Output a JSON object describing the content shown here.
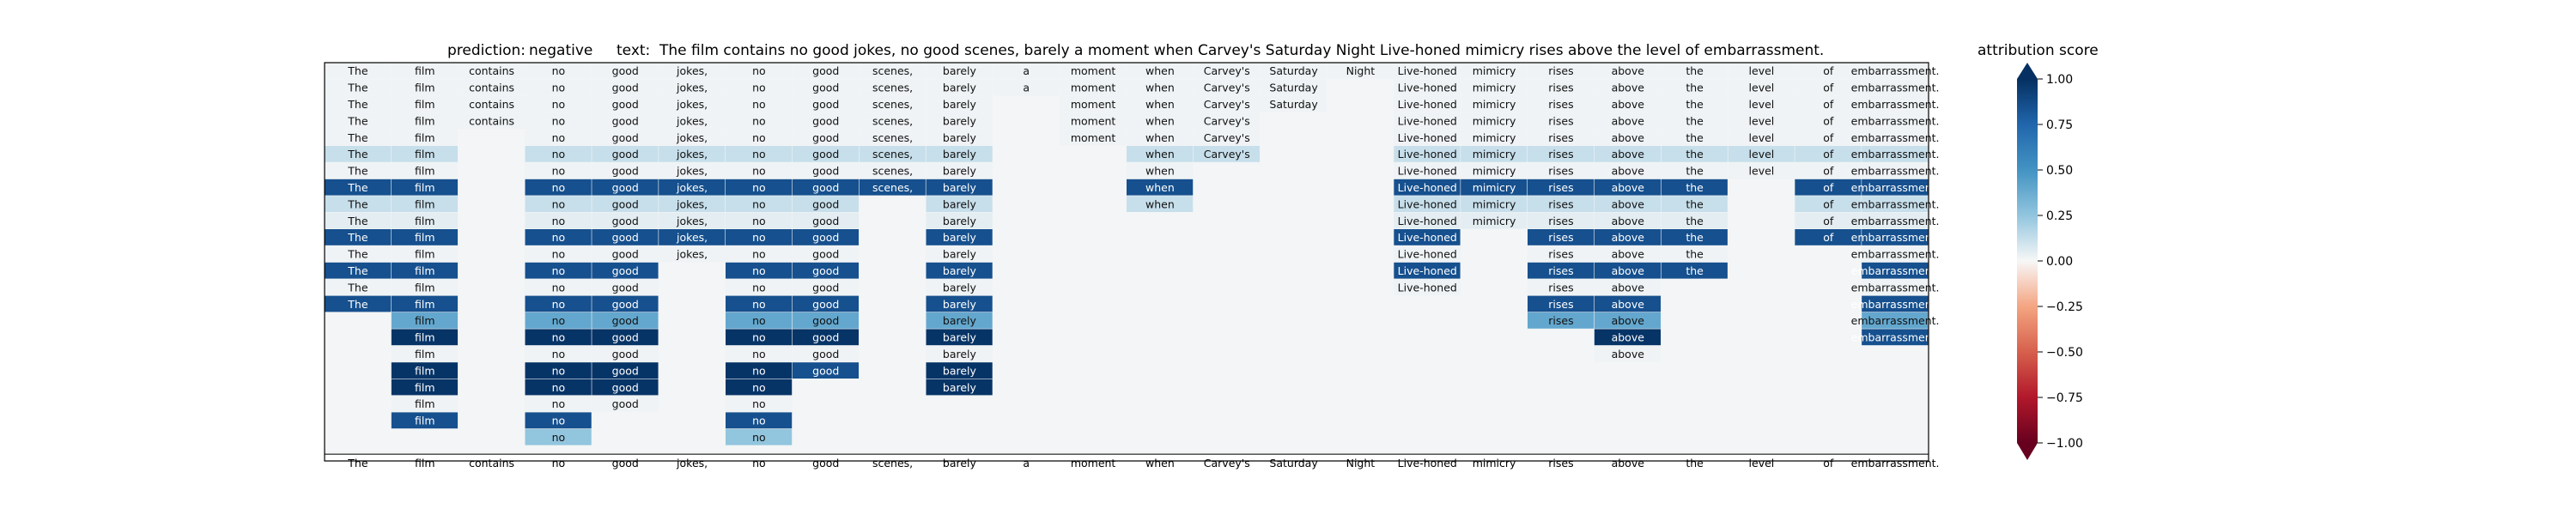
{
  "chart_data": {
    "type": "heatmap",
    "title_prediction_label": "prediction:",
    "prediction": "negative",
    "title_text_label": "text:",
    "text": "The film contains no good jokes, no good scenes, barely a moment when Carvey's Saturday Night Live-honed mimicry rises above the level of embarrassment.",
    "tokens": [
      "The",
      "film",
      "contains",
      "no",
      "good",
      "jokes,",
      "no",
      "good",
      "scenes,",
      "barely",
      "a",
      "moment",
      "when",
      "Carvey's",
      "Saturday",
      "Night",
      "Live-honed",
      "mimicry",
      "rises",
      "above",
      "the",
      "level",
      "of",
      "embarrassment."
    ],
    "rows": [
      [
        0.02,
        0.02,
        0.02,
        0.02,
        0.02,
        0.02,
        0.02,
        0.02,
        0.02,
        0.02,
        0.02,
        0.02,
        0.02,
        0.02,
        0.02,
        0.02,
        0.02,
        0.02,
        0.02,
        0.02,
        0.02,
        0.02,
        0.02,
        0.02
      ],
      [
        0.02,
        0.02,
        0.02,
        0.02,
        0.02,
        0.02,
        0.02,
        0.02,
        0.02,
        0.02,
        0.02,
        0.02,
        0.02,
        0.02,
        0.02,
        null,
        0.02,
        0.02,
        0.02,
        0.02,
        0.02,
        0.02,
        0.02,
        0.02
      ],
      [
        0.02,
        0.02,
        0.02,
        0.02,
        0.02,
        0.02,
        0.02,
        0.02,
        0.02,
        0.02,
        null,
        0.02,
        0.02,
        0.02,
        0.02,
        null,
        0.02,
        0.02,
        0.02,
        0.02,
        0.02,
        0.02,
        0.02,
        0.02
      ],
      [
        0.02,
        0.02,
        0.02,
        0.02,
        0.02,
        0.02,
        0.02,
        0.02,
        0.02,
        0.02,
        null,
        0.02,
        0.02,
        0.02,
        null,
        null,
        0.02,
        0.02,
        0.02,
        0.02,
        0.02,
        0.02,
        0.02,
        0.02
      ],
      [
        0.02,
        0.02,
        null,
        0.02,
        0.02,
        0.02,
        0.02,
        0.02,
        0.02,
        0.02,
        null,
        0.02,
        0.02,
        0.02,
        null,
        null,
        0.02,
        0.02,
        0.02,
        0.02,
        0.02,
        0.02,
        0.02,
        0.02
      ],
      [
        0.12,
        0.12,
        null,
        0.12,
        0.12,
        0.12,
        0.12,
        0.12,
        0.12,
        0.12,
        null,
        null,
        0.12,
        0.12,
        null,
        null,
        0.12,
        0.12,
        0.12,
        0.12,
        0.12,
        0.12,
        0.12,
        0.12
      ],
      [
        0.02,
        0.02,
        null,
        0.02,
        0.02,
        0.02,
        0.02,
        0.02,
        0.02,
        0.02,
        null,
        null,
        0.02,
        null,
        null,
        null,
        0.02,
        0.02,
        0.02,
        0.02,
        0.02,
        0.02,
        0.02,
        0.02
      ],
      [
        0.85,
        0.85,
        null,
        0.85,
        0.85,
        0.85,
        0.85,
        0.85,
        0.85,
        0.85,
        null,
        null,
        0.85,
        null,
        null,
        null,
        0.85,
        0.85,
        0.85,
        0.85,
        0.85,
        null,
        0.85,
        0.85
      ],
      [
        0.12,
        0.12,
        null,
        0.12,
        0.12,
        0.12,
        0.12,
        0.12,
        null,
        0.12,
        null,
        null,
        0.12,
        null,
        null,
        null,
        0.12,
        0.12,
        0.12,
        0.12,
        0.12,
        null,
        0.12,
        0.12
      ],
      [
        0.05,
        0.05,
        null,
        0.05,
        0.05,
        0.05,
        0.05,
        0.05,
        null,
        0.05,
        null,
        null,
        null,
        null,
        null,
        null,
        0.05,
        0.05,
        0.05,
        0.05,
        0.05,
        null,
        0.05,
        0.05
      ],
      [
        0.85,
        0.85,
        null,
        0.85,
        0.85,
        0.85,
        0.85,
        0.85,
        null,
        0.85,
        null,
        null,
        null,
        null,
        null,
        null,
        0.85,
        null,
        0.85,
        0.85,
        0.85,
        null,
        0.85,
        0.85
      ],
      [
        0.02,
        0.02,
        null,
        0.02,
        0.02,
        0.02,
        0.02,
        0.02,
        null,
        0.02,
        null,
        null,
        null,
        null,
        null,
        null,
        0.02,
        null,
        0.02,
        0.02,
        0.02,
        null,
        null,
        0.02
      ],
      [
        0.85,
        0.85,
        null,
        0.85,
        0.85,
        null,
        0.85,
        0.85,
        null,
        0.85,
        null,
        null,
        null,
        null,
        null,
        null,
        0.85,
        null,
        0.85,
        0.85,
        0.85,
        null,
        null,
        0.85
      ],
      [
        0.02,
        0.02,
        null,
        0.02,
        0.02,
        null,
        0.02,
        0.02,
        null,
        0.02,
        null,
        null,
        null,
        null,
        null,
        null,
        0.02,
        null,
        0.02,
        0.02,
        null,
        null,
        null,
        0.02
      ],
      [
        0.85,
        0.85,
        null,
        0.85,
        0.85,
        null,
        0.85,
        0.85,
        null,
        0.85,
        null,
        null,
        null,
        null,
        null,
        null,
        null,
        null,
        0.85,
        0.85,
        null,
        null,
        null,
        0.85
      ],
      [
        null,
        0.4,
        null,
        0.4,
        0.4,
        null,
        0.4,
        0.4,
        null,
        0.4,
        null,
        null,
        null,
        null,
        null,
        null,
        null,
        null,
        0.4,
        0.4,
        null,
        null,
        null,
        0.4
      ],
      [
        null,
        0.98,
        null,
        0.98,
        0.98,
        null,
        0.98,
        0.98,
        null,
        0.98,
        null,
        null,
        null,
        null,
        null,
        null,
        null,
        null,
        null,
        0.98,
        null,
        null,
        null,
        0.85
      ],
      [
        null,
        0.02,
        null,
        0.02,
        0.02,
        null,
        0.02,
        0.02,
        null,
        0.02,
        null,
        null,
        null,
        null,
        null,
        null,
        null,
        null,
        null,
        0.02,
        null,
        null,
        null,
        null
      ],
      [
        null,
        0.98,
        null,
        0.98,
        0.98,
        null,
        0.98,
        0.85,
        null,
        0.98,
        null,
        null,
        null,
        null,
        null,
        null,
        null,
        null,
        null,
        null,
        null,
        null,
        null,
        null
      ],
      [
        null,
        0.98,
        null,
        0.98,
        0.98,
        null,
        0.98,
        null,
        null,
        0.98,
        null,
        null,
        null,
        null,
        null,
        null,
        null,
        null,
        null,
        null,
        null,
        null,
        null,
        null
      ],
      [
        null,
        0.02,
        null,
        0.02,
        0.02,
        null,
        0.02,
        null,
        null,
        null,
        null,
        null,
        null,
        null,
        null,
        null,
        null,
        null,
        null,
        null,
        null,
        null,
        null,
        null
      ],
      [
        null,
        0.85,
        null,
        0.85,
        null,
        null,
        0.85,
        null,
        null,
        null,
        null,
        null,
        null,
        null,
        null,
        null,
        null,
        null,
        null,
        null,
        null,
        null,
        null,
        null
      ],
      [
        null,
        null,
        null,
        0.25,
        null,
        null,
        0.25,
        null,
        null,
        null,
        null,
        null,
        null,
        null,
        null,
        null,
        null,
        null,
        null,
        null,
        null,
        null,
        null,
        null
      ]
    ],
    "colorbar": {
      "label": "attribution score",
      "min": -1.0,
      "max": 1.0,
      "colormap": "RdBu",
      "ticks": [
        "1.00",
        "0.75",
        "0.50",
        "0.25",
        "0.00",
        "−0.25",
        "−0.50",
        "−0.75",
        "−1.00"
      ]
    }
  }
}
